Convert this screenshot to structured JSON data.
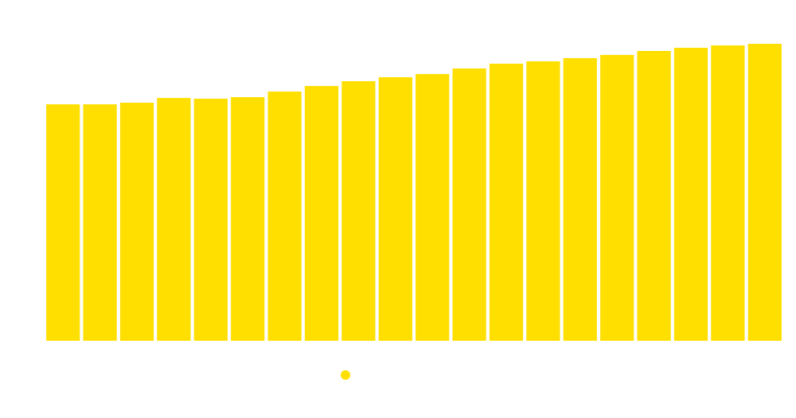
{
  "chart_data": {
    "type": "bar",
    "series": [
      {
        "color": "#ffdf00",
        "values": [
          297,
          297,
          299,
          305,
          304,
          306,
          313,
          320,
          326,
          331,
          335,
          342,
          348,
          351,
          355,
          359,
          364,
          368,
          371,
          373
        ]
      }
    ],
    "ylim": [
      0,
      400
    ],
    "legend": "bottom"
  }
}
